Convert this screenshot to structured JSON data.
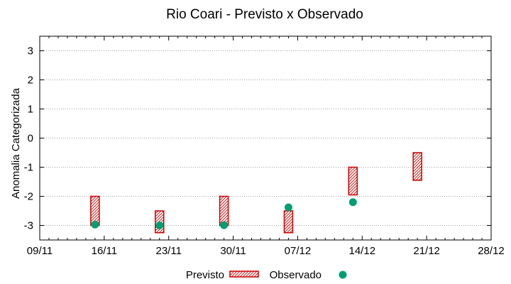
{
  "chart_data": {
    "type": "range-bar-and-scatter",
    "title": "Rio Coari - Previsto x Observado",
    "ylabel": "Anomalia Categorizada",
    "xlabel": "",
    "ylim": [
      -3.5,
      3.5
    ],
    "yticks": [
      "3",
      "2",
      "1",
      "0",
      "-1",
      "-2",
      "-3"
    ],
    "ytick_values": [
      3,
      2,
      1,
      0,
      -1,
      -2,
      -3
    ],
    "xlim": [
      "09/11",
      "28/12"
    ],
    "xticks": [
      "09/11",
      "16/11",
      "23/11",
      "30/11",
      "07/12",
      "14/12",
      "21/12",
      "28/12"
    ],
    "grid": true,
    "legend_placement": "bottom",
    "series": [
      {
        "name": "Previsto",
        "kind": "range",
        "color": "#cc0000",
        "points": [
          {
            "x": "15/11",
            "low": -3.0,
            "high": -2.0
          },
          {
            "x": "22/11",
            "low": -3.25,
            "high": -2.5
          },
          {
            "x": "29/11",
            "low": -3.0,
            "high": -2.0
          },
          {
            "x": "06/12",
            "low": -3.25,
            "high": -2.5
          },
          {
            "x": "13/12",
            "low": -1.95,
            "high": -1.0
          },
          {
            "x": "20/12",
            "low": -1.45,
            "high": -0.5
          }
        ]
      },
      {
        "name": "Observado",
        "kind": "point",
        "color": "#009e73",
        "points": [
          {
            "x": "15/11",
            "y": -2.97
          },
          {
            "x": "22/11",
            "y": -3.0
          },
          {
            "x": "29/11",
            "y": -2.99
          },
          {
            "x": "06/12",
            "y": -2.38
          },
          {
            "x": "13/12",
            "y": -2.2
          }
        ]
      }
    ]
  }
}
